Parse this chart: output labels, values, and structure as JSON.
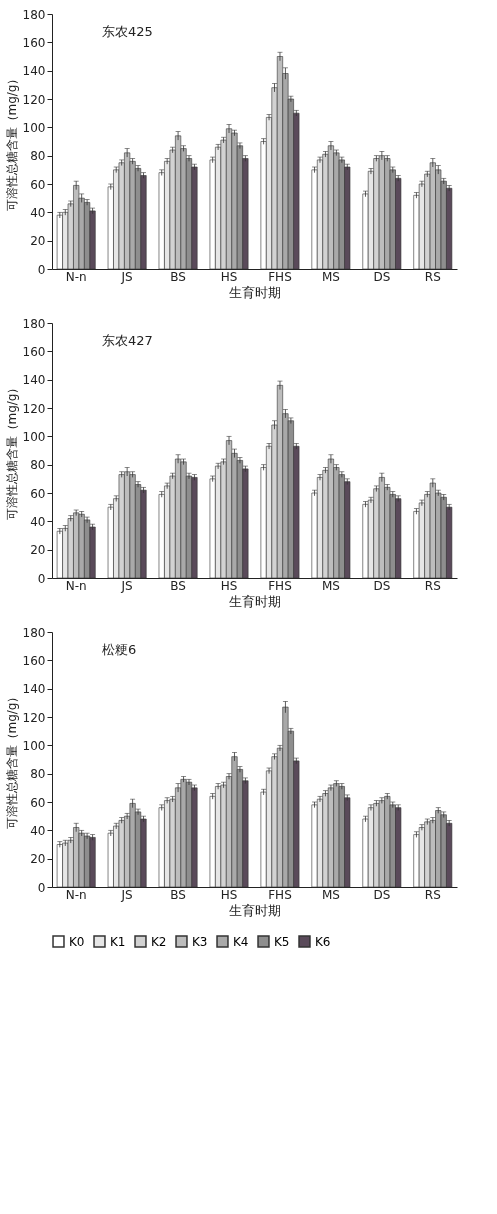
{
  "chart_data": [
    {
      "type": "bar",
      "title": "东农425",
      "xlabel": "生育时期",
      "ylabel": "可溶性总糖含量（mg/g）",
      "categories": [
        "N-n",
        "JS",
        "BS",
        "HS",
        "FHS",
        "MS",
        "DS",
        "RS"
      ],
      "ylim": [
        0,
        180
      ],
      "yticks": [
        0,
        20,
        40,
        60,
        80,
        100,
        120,
        140,
        160,
        180
      ],
      "grid": false,
      "legend": "bottom",
      "series": [
        {
          "name": "K0",
          "color": "#ffffff",
          "values": [
            38,
            58,
            68,
            77,
            90,
            70,
            53,
            52
          ],
          "errors": [
            2,
            2,
            2,
            2,
            2,
            2,
            2,
            2
          ]
        },
        {
          "name": "K1",
          "color": "#e6e6e6",
          "values": [
            40,
            70,
            76,
            86,
            107,
            77,
            69,
            60
          ],
          "errors": [
            2,
            2,
            2,
            2,
            2,
            2,
            2,
            2
          ]
        },
        {
          "name": "K2",
          "color": "#d2d2d2",
          "values": [
            46,
            75,
            84,
            91,
            128,
            81,
            78,
            67
          ],
          "errors": [
            2,
            2,
            2,
            2,
            3,
            2,
            2,
            2
          ]
        },
        {
          "name": "K3",
          "color": "#bdbdbd",
          "values": [
            59,
            82,
            94,
            99,
            150,
            87,
            80,
            75
          ],
          "errors": [
            3,
            3,
            3,
            3,
            3,
            3,
            3,
            3
          ]
        },
        {
          "name": "K4",
          "color": "#a9a9a9",
          "values": [
            50,
            76,
            85,
            96,
            138,
            82,
            78,
            70
          ],
          "errors": [
            3,
            2,
            2,
            2,
            4,
            2,
            2,
            3
          ]
        },
        {
          "name": "K5",
          "color": "#8e8e8e",
          "values": [
            47,
            71,
            78,
            87,
            120,
            77,
            70,
            62
          ],
          "errors": [
            2,
            2,
            2,
            2,
            2,
            2,
            2,
            2
          ]
        },
        {
          "name": "K6",
          "color": "#5a4a5a",
          "values": [
            41,
            66,
            72,
            78,
            110,
            72,
            64,
            57
          ],
          "errors": [
            2,
            2,
            2,
            2,
            2,
            2,
            2,
            2
          ]
        }
      ]
    },
    {
      "type": "bar",
      "title": "东农427",
      "xlabel": "生育时期",
      "ylabel": "可溶性总糖含量（mg/g）",
      "categories": [
        "N-n",
        "JS",
        "BS",
        "HS",
        "FHS",
        "MS",
        "DS",
        "RS"
      ],
      "ylim": [
        0,
        180
      ],
      "yticks": [
        0,
        20,
        40,
        60,
        80,
        100,
        120,
        140,
        160,
        180
      ],
      "grid": false,
      "legend": "bottom",
      "series": [
        {
          "name": "K0",
          "color": "#ffffff",
          "values": [
            33,
            50,
            59,
            70,
            78,
            60,
            52,
            47
          ],
          "errors": [
            2,
            2,
            2,
            2,
            2,
            2,
            2,
            2
          ]
        },
        {
          "name": "K1",
          "color": "#e6e6e6",
          "values": [
            35,
            56,
            65,
            79,
            93,
            71,
            55,
            53
          ],
          "errors": [
            2,
            2,
            2,
            2,
            2,
            2,
            2,
            2
          ]
        },
        {
          "name": "K2",
          "color": "#d2d2d2",
          "values": [
            42,
            73,
            72,
            82,
            108,
            76,
            63,
            59
          ],
          "errors": [
            2,
            2,
            2,
            2,
            3,
            2,
            2,
            2
          ]
        },
        {
          "name": "K3",
          "color": "#bdbdbd",
          "values": [
            46,
            75,
            84,
            97,
            136,
            84,
            71,
            67
          ],
          "errors": [
            2,
            3,
            3,
            3,
            3,
            3,
            3,
            3
          ]
        },
        {
          "name": "K4",
          "color": "#a9a9a9",
          "values": [
            45,
            73,
            82,
            88,
            116,
            78,
            64,
            60
          ],
          "errors": [
            2,
            2,
            2,
            3,
            3,
            2,
            2,
            2
          ]
        },
        {
          "name": "K5",
          "color": "#8e8e8e",
          "values": [
            41,
            66,
            72,
            83,
            111,
            73,
            59,
            57
          ],
          "errors": [
            2,
            2,
            2,
            2,
            2,
            2,
            2,
            2
          ]
        },
        {
          "name": "K6",
          "color": "#5a4a5a",
          "values": [
            36,
            62,
            71,
            77,
            93,
            68,
            56,
            50
          ],
          "errors": [
            2,
            2,
            2,
            2,
            2,
            2,
            2,
            2
          ]
        }
      ]
    },
    {
      "type": "bar",
      "title": "松粳6",
      "xlabel": "生育时期",
      "ylabel": "可溶性总糖含量（mg/g）",
      "categories": [
        "N-n",
        "JS",
        "BS",
        "HS",
        "FHS",
        "MS",
        "DS",
        "RS"
      ],
      "ylim": [
        0,
        180
      ],
      "yticks": [
        0,
        20,
        40,
        60,
        80,
        100,
        120,
        140,
        160,
        180
      ],
      "grid": false,
      "legend": "bottom",
      "series": [
        {
          "name": "K0",
          "color": "#ffffff",
          "values": [
            30,
            38,
            56,
            64,
            67,
            58,
            48,
            37
          ],
          "errors": [
            2,
            2,
            2,
            2,
            2,
            2,
            2,
            2
          ]
        },
        {
          "name": "K1",
          "color": "#e6e6e6",
          "values": [
            31,
            43,
            61,
            71,
            82,
            62,
            56,
            42
          ],
          "errors": [
            2,
            2,
            2,
            2,
            2,
            2,
            2,
            2
          ]
        },
        {
          "name": "K2",
          "color": "#d2d2d2",
          "values": [
            33,
            47,
            62,
            72,
            92,
            66,
            59,
            46
          ],
          "errors": [
            2,
            2,
            2,
            2,
            2,
            2,
            2,
            2
          ]
        },
        {
          "name": "K3",
          "color": "#bdbdbd",
          "values": [
            42,
            50,
            70,
            78,
            98,
            70,
            61,
            47
          ],
          "errors": [
            3,
            2,
            3,
            2,
            2,
            2,
            2,
            2
          ]
        },
        {
          "name": "K4",
          "color": "#a9a9a9",
          "values": [
            38,
            59,
            76,
            92,
            127,
            73,
            64,
            54
          ],
          "errors": [
            2,
            3,
            2,
            3,
            4,
            2,
            2,
            2
          ]
        },
        {
          "name": "K5",
          "color": "#8e8e8e",
          "values": [
            36,
            53,
            74,
            83,
            110,
            71,
            58,
            51
          ],
          "errors": [
            2,
            2,
            2,
            2,
            2,
            2,
            2,
            2
          ]
        },
        {
          "name": "K6",
          "color": "#5a4a5a",
          "values": [
            35,
            48,
            70,
            75,
            89,
            63,
            56,
            45
          ],
          "errors": [
            2,
            2,
            2,
            2,
            2,
            2,
            2,
            2
          ]
        }
      ]
    }
  ]
}
